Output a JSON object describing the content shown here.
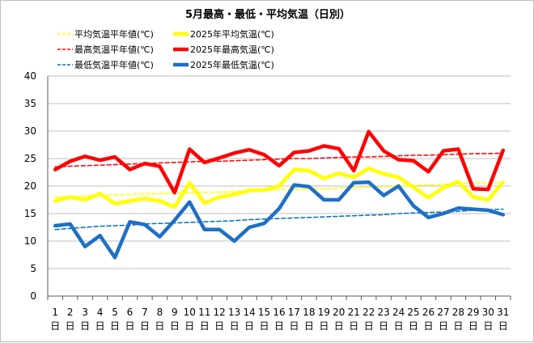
{
  "chart_data": {
    "type": "line",
    "title": "5月最高・最低・平均気温（日別）",
    "ylim": [
      0,
      40
    ],
    "y_ticks": [
      0,
      5,
      10,
      15,
      20,
      25,
      30,
      35,
      40
    ],
    "x_days": [
      "1",
      "2",
      "3",
      "4",
      "5",
      "6",
      "7",
      "8",
      "9",
      "10",
      "11",
      "12",
      "13",
      "14",
      "15",
      "16",
      "17",
      "18",
      "19",
      "20",
      "21",
      "22",
      "23",
      "24",
      "25",
      "26",
      "27",
      "28",
      "29",
      "30",
      "31"
    ],
    "x_unit": "日",
    "grid": "horizontal",
    "legend_position": "top",
    "series": [
      {
        "name": "平均気温平年値(℃)",
        "color": "#ffff00",
        "style": "dashed",
        "values": [
          18.0,
          18.1,
          18.2,
          18.3,
          18.4,
          18.5,
          18.6,
          18.6,
          18.7,
          18.8,
          18.9,
          18.9,
          19.0,
          19.1,
          19.2,
          19.3,
          19.4,
          19.5,
          19.5,
          19.6,
          19.7,
          19.8,
          19.9,
          20.0,
          20.1,
          20.2,
          20.3,
          20.4,
          20.5,
          20.6,
          20.7
        ]
      },
      {
        "name": "2025年平均気温(℃)",
        "color": "#ffff00",
        "style": "solid",
        "values": [
          17.3,
          18.0,
          17.5,
          18.6,
          16.8,
          17.3,
          17.7,
          17.3,
          16.2,
          20.6,
          16.9,
          18.0,
          18.5,
          19.2,
          19.3,
          20.0,
          23.0,
          22.8,
          21.4,
          22.3,
          21.6,
          23.2,
          22.2,
          21.6,
          19.8,
          17.9,
          19.7,
          20.8,
          18.0,
          17.5,
          20.7
        ]
      },
      {
        "name": "最高気温平年値(℃)",
        "color": "#ff0000",
        "style": "dashed",
        "values": [
          23.5,
          23.6,
          23.7,
          23.8,
          23.9,
          24.0,
          24.1,
          24.2,
          24.3,
          24.4,
          24.5,
          24.5,
          24.6,
          24.7,
          24.8,
          24.9,
          25.0,
          25.0,
          25.1,
          25.2,
          25.3,
          25.3,
          25.4,
          25.5,
          25.6,
          25.6,
          25.7,
          25.8,
          25.9,
          25.9,
          26.0
        ]
      },
      {
        "name": "2025年最高気温(℃)",
        "color": "#ff0000",
        "style": "solid",
        "values": [
          23.0,
          24.5,
          25.4,
          24.7,
          25.3,
          23.0,
          24.1,
          23.6,
          18.8,
          26.7,
          24.3,
          25.1,
          26.0,
          26.6,
          25.7,
          23.7,
          26.1,
          26.4,
          27.3,
          26.8,
          22.8,
          29.9,
          26.4,
          24.8,
          24.6,
          22.6,
          26.4,
          26.7,
          19.5,
          19.4,
          26.5
        ]
      },
      {
        "name": "最低気温平年値(℃)",
        "color": "#0070c0",
        "style": "dashed",
        "values": [
          12.1,
          12.3,
          12.5,
          12.7,
          12.8,
          12.9,
          13.1,
          13.2,
          13.3,
          13.4,
          13.5,
          13.6,
          13.7,
          13.9,
          14.0,
          14.1,
          14.2,
          14.3,
          14.4,
          14.5,
          14.6,
          14.7,
          14.8,
          15.0,
          15.1,
          15.2,
          15.3,
          15.4,
          15.6,
          15.7,
          15.8
        ]
      },
      {
        "name": "2025年最低気温(℃)",
        "color": "#1f6fc5",
        "style": "solid",
        "values": [
          12.8,
          13.1,
          9.0,
          11.0,
          7.0,
          13.5,
          13.0,
          10.8,
          13.8,
          17.1,
          12.1,
          12.1,
          10.0,
          12.5,
          13.2,
          15.9,
          20.2,
          19.9,
          17.5,
          17.5,
          20.6,
          20.7,
          18.3,
          20.0,
          16.4,
          14.3,
          15.0,
          16.0,
          15.8,
          15.6,
          14.8
        ]
      }
    ]
  }
}
